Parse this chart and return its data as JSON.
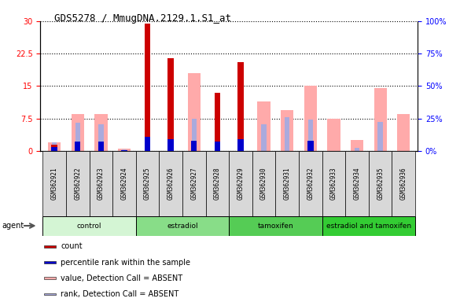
{
  "title": "GDS5278 / MmugDNA.2129.1.S1_at",
  "samples": [
    "GSM362921",
    "GSM362922",
    "GSM362923",
    "GSM362924",
    "GSM362925",
    "GSM362926",
    "GSM362927",
    "GSM362928",
    "GSM362929",
    "GSM362930",
    "GSM362931",
    "GSM362932",
    "GSM362933",
    "GSM362934",
    "GSM362935",
    "GSM362936"
  ],
  "groups": [
    {
      "label": "control",
      "color": "#d4f5d4",
      "start": 0,
      "end": 4
    },
    {
      "label": "estradiol",
      "color": "#88dd88",
      "start": 4,
      "end": 8
    },
    {
      "label": "tamoxifen",
      "color": "#55cc55",
      "start": 8,
      "end": 12
    },
    {
      "label": "estradiol and tamoxifen",
      "color": "#33cc33",
      "start": 12,
      "end": 16
    }
  ],
  "count_values": [
    1.5,
    0,
    0,
    0,
    29.5,
    21.5,
    0,
    13.5,
    20.5,
    0,
    0,
    0,
    0,
    0,
    0,
    0
  ],
  "rank_values": [
    0.9,
    2.1,
    2.1,
    0.1,
    3.2,
    2.8,
    2.3,
    2.2,
    2.7,
    0,
    0,
    2.3,
    0,
    0,
    0,
    0
  ],
  "value_absent": [
    2.0,
    8.5,
    8.5,
    0.5,
    0,
    0,
    18.0,
    0,
    0,
    11.5,
    9.5,
    15.0,
    7.5,
    2.5,
    14.5,
    8.5
  ],
  "rank_absent": [
    2.0,
    6.5,
    6.2,
    0.3,
    0,
    0,
    7.5,
    0,
    0,
    6.2,
    7.8,
    7.3,
    0,
    0.8,
    6.8,
    0
  ],
  "ylim_left": [
    0,
    30
  ],
  "ylim_right": [
    0,
    100
  ],
  "yticks_left": [
    0,
    7.5,
    15,
    22.5,
    30
  ],
  "yticks_right": [
    0,
    25,
    50,
    75,
    100
  ],
  "ytick_labels_left": [
    "0",
    "7.5",
    "15",
    "22.5",
    "30"
  ],
  "ytick_labels_right": [
    "0%",
    "25%",
    "50%",
    "75%",
    "100%"
  ],
  "count_color": "#cc0000",
  "rank_color": "#0000cc",
  "value_absent_color": "#ffaaaa",
  "rank_absent_color": "#aaaadd",
  "agent_label": "agent"
}
